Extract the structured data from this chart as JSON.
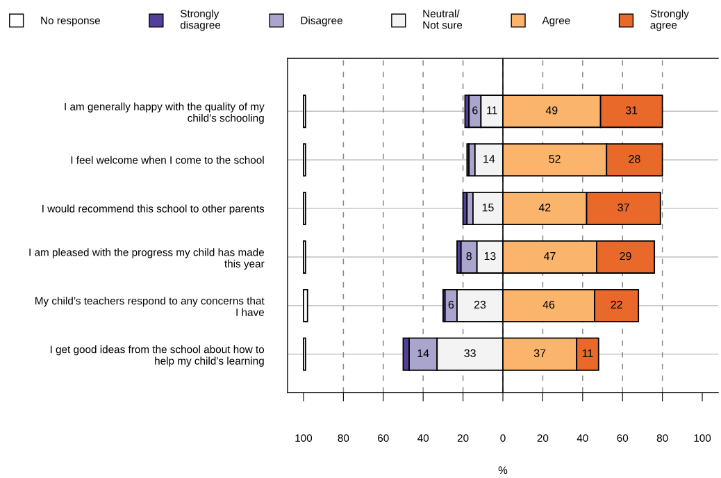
{
  "chart_data": {
    "type": "bar",
    "orientation": "horizontal",
    "xlabel": "%",
    "categories": [
      "I am generally happy with the quality of my\nchild’s schooling",
      "I feel welcome when I come to the school",
      "I would recommend this school to other parents",
      "I am pleased with the progress my child has made\nthis year",
      "My child’s teachers respond to any concerns that\nI have",
      "I get good ideas from the school about how to\nhelp my child’s learning"
    ],
    "series": [
      {
        "name": "No response",
        "color": "#ffffff",
        "base": [
          -100,
          -100,
          -100,
          -100,
          -100,
          -100
        ],
        "values": [
          1,
          1,
          1,
          1,
          2,
          1
        ]
      },
      {
        "name": "Strongly\ndisagree",
        "color": "#54409a",
        "base": [
          -19,
          -18,
          -20,
          -23,
          -30,
          -50
        ],
        "values": [
          2,
          1,
          2,
          2,
          1,
          3
        ]
      },
      {
        "name": "Disagree",
        "color": "#a9a5cc",
        "base": [
          -17,
          -17,
          -18,
          -21,
          -29,
          -47
        ],
        "values": [
          6,
          3,
          3,
          8,
          6,
          14
        ],
        "value_labels": [
          "6",
          null,
          null,
          "8",
          "6",
          "14"
        ]
      },
      {
        "name": "Neutral/\nNot sure",
        "color": "#f3f3f3",
        "base": [
          -11,
          -14,
          -15,
          -13,
          -23,
          -33
        ],
        "values": [
          11,
          14,
          15,
          13,
          23,
          33
        ],
        "value_labels": [
          "11",
          "14",
          "15",
          "13",
          "23",
          "33"
        ]
      },
      {
        "name": "Agree",
        "color": "#fbb46c",
        "base": [
          0,
          0,
          0,
          0,
          0,
          0
        ],
        "values": [
          49,
          52,
          42,
          47,
          46,
          37
        ],
        "value_labels": [
          "49",
          "52",
          "42",
          "47",
          "46",
          "37"
        ]
      },
      {
        "name": "Strongly\nagree",
        "color": "#e8692a",
        "base": [
          49,
          52,
          42,
          47,
          46,
          37
        ],
        "values": [
          31,
          28,
          37,
          29,
          22,
          11
        ],
        "value_labels": [
          "31",
          "28",
          "37",
          "29",
          "22",
          "11"
        ]
      }
    ],
    "xlim": [
      -108,
      108
    ],
    "xticks": [
      {
        "value": -100,
        "label": "100"
      },
      {
        "value": -80,
        "label": "80"
      },
      {
        "value": -60,
        "label": "60"
      },
      {
        "value": -40,
        "label": "40"
      },
      {
        "value": -20,
        "label": "20"
      },
      0,
      20,
      40,
      60,
      80,
      100
    ],
    "ref_lines": [
      {
        "axis": "x",
        "value": 0,
        "color": "#000000",
        "line_style": "solid"
      }
    ],
    "grid": true,
    "legend": "top"
  }
}
